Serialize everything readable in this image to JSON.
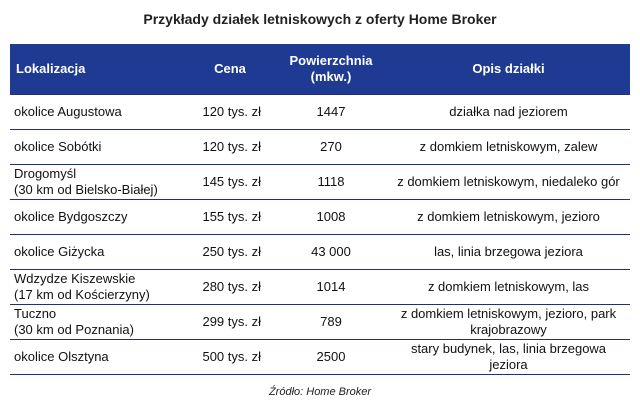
{
  "title": "Przykłady działek letniskowych z oferty Home Broker",
  "table": {
    "headers": {
      "location": "Lokalizacja",
      "price": "Cena",
      "area_line1": "Powierzchnia",
      "area_line2": "(mkw.)",
      "description": "Opis działki"
    },
    "rows": [
      {
        "loc1": "okolice Augustowa",
        "loc2": "",
        "price": "120  tys. zł",
        "area": "1447",
        "desc1": "działka nad jeziorem",
        "desc2": ""
      },
      {
        "loc1": "okolice Sobótki",
        "loc2": "",
        "price": "120  tys. zł",
        "area": "270",
        "desc1": "z domkiem letniskowym, zalew",
        "desc2": ""
      },
      {
        "loc1": "Drogomyśl",
        "loc2": "(30 km od Bielsko-Białej)",
        "price": "145  tys. zł",
        "area": "1118",
        "desc1": "z domkiem letniskowym, niedaleko gór",
        "desc2": ""
      },
      {
        "loc1": "okolice Bydgoszczy",
        "loc2": "",
        "price": "155  tys. zł",
        "area": "1008",
        "desc1": "z domkiem letniskowym, jezioro",
        "desc2": ""
      },
      {
        "loc1": "okolice Giżycka",
        "loc2": "",
        "price": "250  tys. zł",
        "area": "43 000",
        "desc1": "las, linia brzegowa jeziora",
        "desc2": ""
      },
      {
        "loc1": "Wdzydze Kiszewskie",
        "loc2": "(17 km od Kościerzyny)",
        "price": "280  tys. zł",
        "area": "1014",
        "desc1": "z domkiem letniskowym, las",
        "desc2": ""
      },
      {
        "loc1": "Tuczno",
        "loc2": "(30 km od Poznania)",
        "price": "299  tys. zł",
        "area": "789",
        "desc1": "z domkiem letniskowym, jezioro, park",
        "desc2": "krajobrazowy"
      },
      {
        "loc1": "okolice Olsztyna",
        "loc2": "",
        "price": "500  tys. zł",
        "area": "2500",
        "desc1": "stary budynek, las, linia brzegowa",
        "desc2": "jeziora"
      }
    ]
  },
  "source": "Źródło: Home Broker",
  "colors": {
    "header_bg": "#1f3a93",
    "header_text": "#ffffff",
    "rule": "#1f2f7a"
  }
}
